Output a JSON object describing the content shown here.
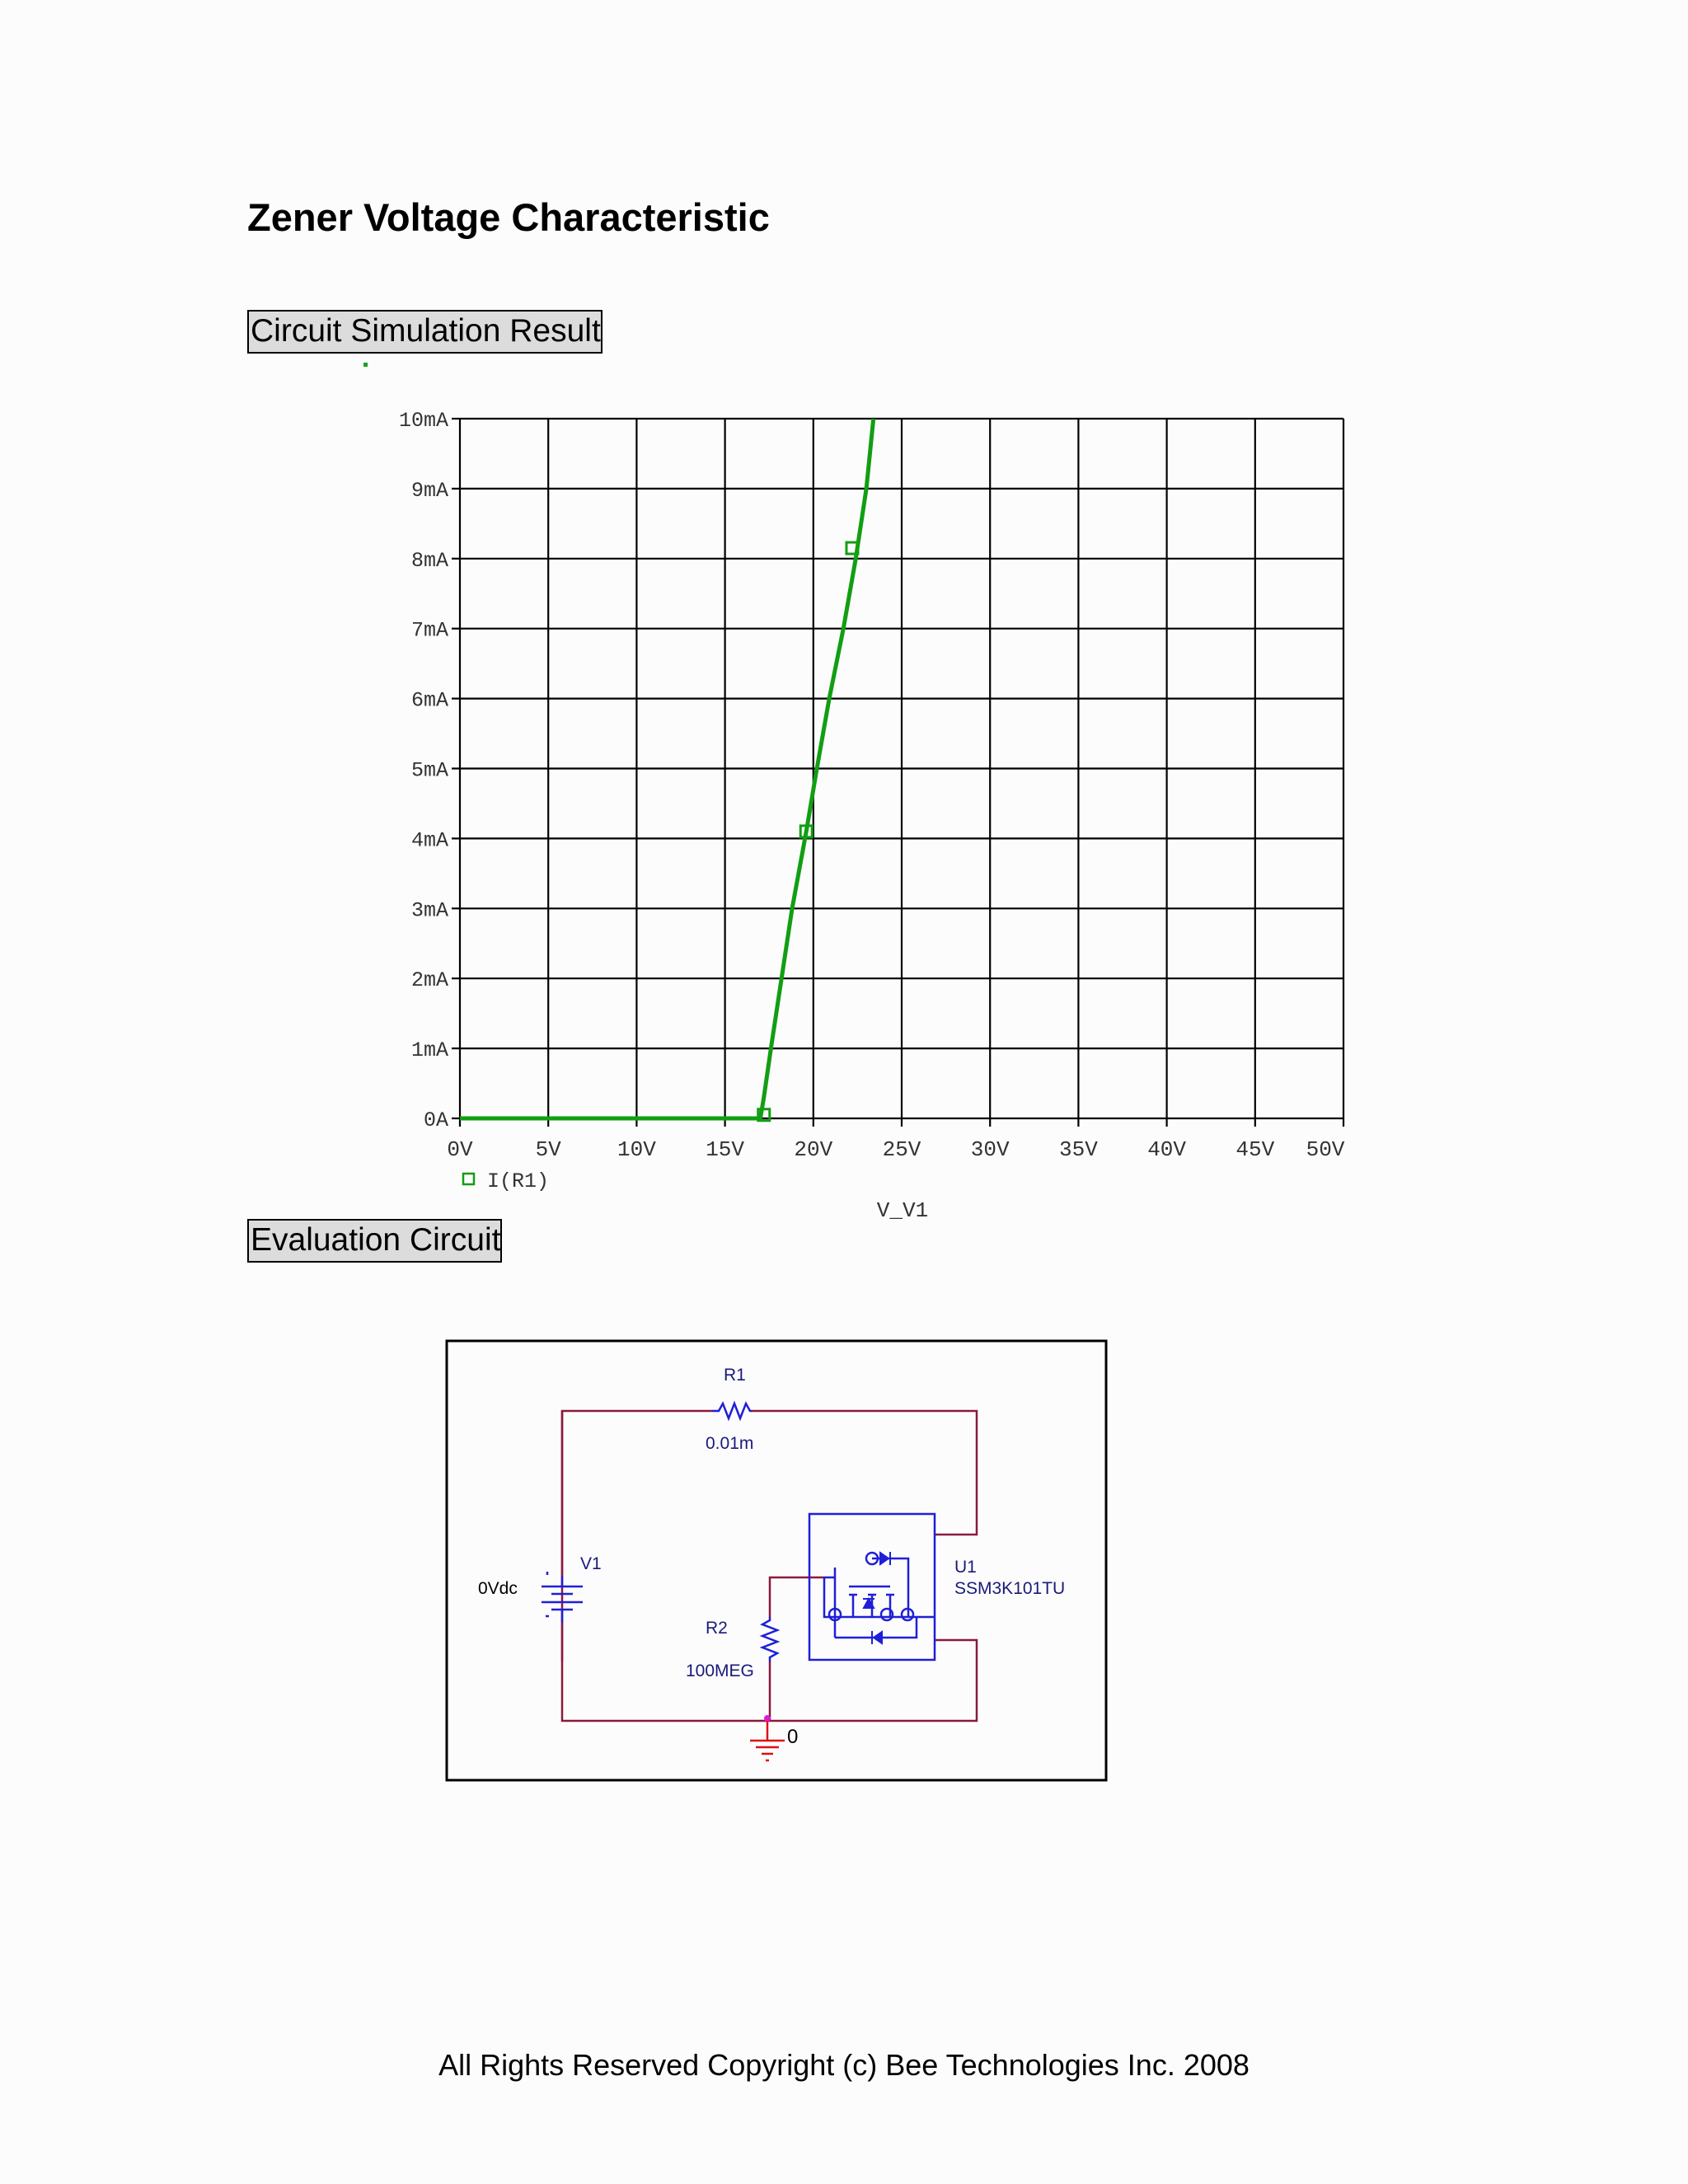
{
  "page": {
    "title": "Zener Voltage Characteristic",
    "footer": "All Rights Reserved Copyright (c) Bee Technologies Inc. 2008"
  },
  "sections": {
    "simulation_label": "Circuit Simulation Result",
    "evaluation_label": "Evaluation Circuit"
  },
  "chart_data": {
    "type": "line",
    "title": "",
    "xlabel": "V_V1",
    "ylabel": "",
    "xlim": [
      0,
      50
    ],
    "ylim": [
      0,
      10
    ],
    "x_ticks": [
      "0V",
      "5V",
      "10V",
      "15V",
      "20V",
      "25V",
      "30V",
      "35V",
      "40V",
      "45V",
      "50V"
    ],
    "y_ticks": [
      "0A",
      "1mA",
      "2mA",
      "3mA",
      "4mA",
      "5mA",
      "6mA",
      "7mA",
      "8mA",
      "9mA",
      "10mA"
    ],
    "grid": true,
    "legend_position": "bottom-left",
    "series": [
      {
        "name": "I(R1)",
        "color": "#129e12",
        "x": [
          0,
          17.0,
          17.2,
          17.6,
          18.2,
          18.8,
          19.6,
          20.2,
          20.9,
          21.7,
          22.4,
          23.0,
          23.4
        ],
        "y": [
          0,
          0,
          0.3,
          1.0,
          2.0,
          3.0,
          4.1,
          5.0,
          6.0,
          7.0,
          8.0,
          9.0,
          10.0
        ],
        "markers_x": [
          17.2,
          19.6,
          22.2
        ],
        "markers_y": [
          0.05,
          4.1,
          8.15
        ]
      }
    ]
  },
  "circuit": {
    "r1_name": "R1",
    "r1_value": "0.01m",
    "v1_name": "V1",
    "v1_value": "0Vdc",
    "r2_name": "R2",
    "r2_value": "100MEG",
    "u1_name": "U1",
    "u1_part": "SSM3K101TU",
    "ground_label": "0",
    "wire_color": "#8b1a3a",
    "component_color": "#1f1fd8",
    "label_color": "#1a1a7a"
  }
}
